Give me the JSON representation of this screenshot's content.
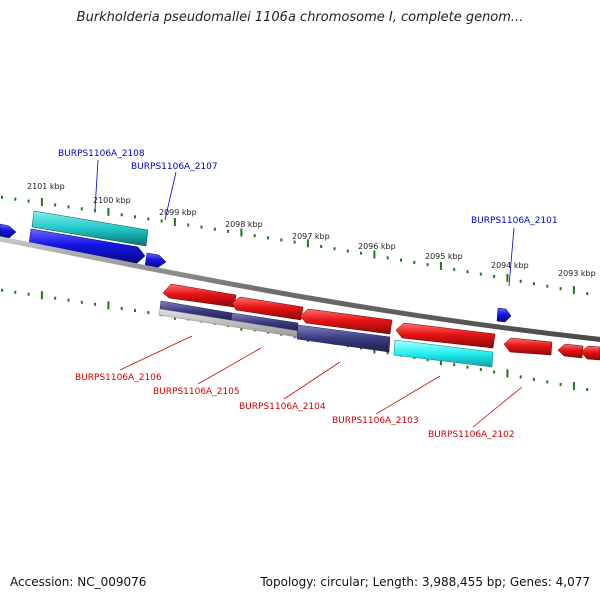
{
  "title": "Burkholderia pseudomallei 1106a chromosome I, complete genom...",
  "footer": {
    "accession": "Accession: NC_009076",
    "summary": "Topology: circular; Length: 3,988,455 bp; Genes: 4,077"
  },
  "colors": {
    "forward_gene": "#1414e6",
    "forward_gene_alt": "#20c8c8",
    "reverse_gene": "#e61414",
    "reverse_gene_alt": "#20e6e6",
    "reverse_gene_dark": "#3a3a80",
    "backbone": "#7a7a7a",
    "tick": "#1a7a1a",
    "label_forward": "#0000cc",
    "label_reverse": "#cc0000"
  },
  "kbp_labels": [
    "2101 kbp",
    "2100 kbp",
    "2099 kbp",
    "2098 kbp",
    "2097 kbp",
    "2096 kbp",
    "2095 kbp",
    "2094 kbp",
    "2093 kbp"
  ],
  "forward_labels": [
    "BURPS1106A_2108",
    "BURPS1106A_2107",
    "BURPS1106A_2101"
  ],
  "reverse_labels": [
    "BURPS1106A_2106",
    "BURPS1106A_2105",
    "BURPS1106A_2104",
    "BURPS1106A_2103",
    "BURPS1106A_2102"
  ]
}
